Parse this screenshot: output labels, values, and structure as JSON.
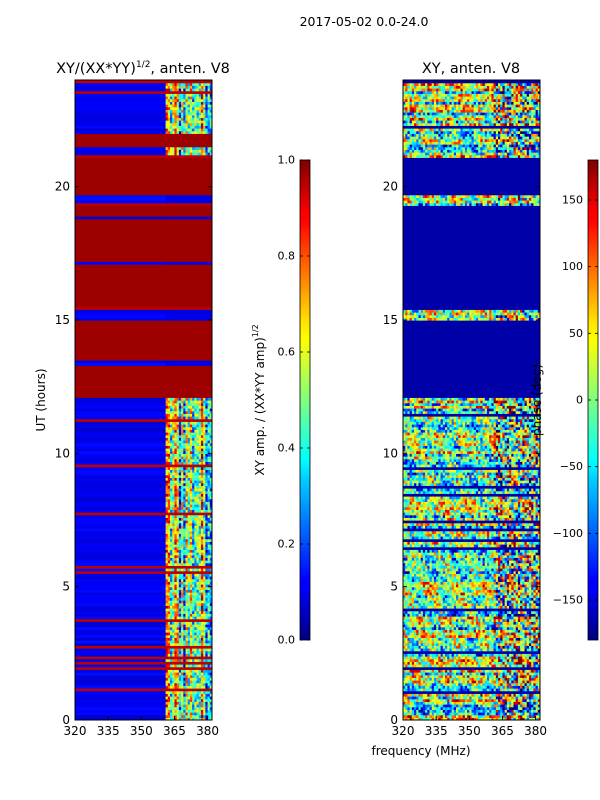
{
  "suptitle": "2017-05-02 0.0-24.0",
  "shared_xlabel": "frequency (MHz)",
  "chart_data": [
    {
      "type": "heatmap",
      "title_text": "XY/(XX*YY)",
      "title_power": "1/2",
      "title_suffix": ", anten. V8",
      "xlabel": "",
      "ylabel": "UT (hours)",
      "xlim": [
        320,
        382
      ],
      "ylim": [
        0,
        24
      ],
      "xticks": [
        320,
        335,
        350,
        365,
        380
      ],
      "yticks": [
        0,
        5,
        10,
        15,
        20
      ],
      "colorbar": {
        "label_text": "XY amp. / (XX*YY amp)",
        "label_power": "1/2",
        "range": [
          0.0,
          1.0
        ],
        "ticks": [
          "0.0",
          "0.2",
          "0.4",
          "0.6",
          "0.8",
          "1.0"
        ],
        "tick_values": [
          0.0,
          0.2,
          0.4,
          0.6,
          0.8,
          1.0
        ]
      },
      "colormap": "jet",
      "saturated_ut_ranges": [
        [
          12.1,
          14.95
        ],
        [
          15.5,
          19.3
        ],
        [
          19.7,
          21.1
        ],
        [
          21.5,
          22.0
        ]
      ],
      "rfi_band_mhz": [
        361,
        381
      ],
      "series": [
        {
          "name": "background (320-361 MHz)",
          "values": [
            0.05
          ]
        },
        {
          "name": "RFI band (361-381 MHz)",
          "values": [
            0.45
          ]
        },
        {
          "name": "flagged intervals",
          "values": [
            1.0
          ]
        }
      ]
    },
    {
      "type": "heatmap",
      "title_text": "XY, anten. V8",
      "xlabel": "",
      "ylabel": "",
      "xlim": [
        320,
        382
      ],
      "ylim": [
        0,
        24
      ],
      "xticks": [
        320,
        335,
        350,
        365,
        380
      ],
      "yticks": [
        0,
        5,
        10,
        15,
        20
      ],
      "colorbar": {
        "label_text": "phase (deg)",
        "range": [
          -180,
          180
        ],
        "ticks": [
          "−150",
          "−100",
          "−50",
          "0",
          "50",
          "100",
          "150"
        ],
        "tick_values": [
          -150,
          -100,
          -50,
          0,
          50,
          100,
          150
        ]
      },
      "colormap": "jet",
      "constant_phase_ut_ranges": [
        [
          12.1,
          14.95
        ],
        [
          15.5,
          19.3
        ],
        [
          19.7,
          21.1
        ]
      ],
      "series": [
        {
          "name": "phase (noisy)",
          "values": [
            -180,
            180
          ]
        },
        {
          "name": "flagged intervals",
          "values": [
            -180
          ]
        }
      ]
    }
  ]
}
